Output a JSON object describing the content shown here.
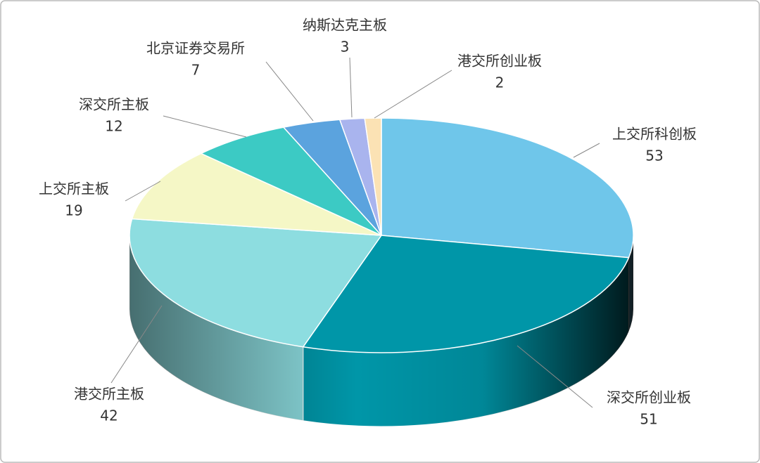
{
  "chart_data": {
    "type": "pie",
    "categories": [
      "上交所科创板",
      "深交所创业板",
      "港交所主板",
      "上交所主板",
      "深交所主板",
      "北京证券交易所",
      "纳斯达克主板",
      "港交所创业板"
    ],
    "values": [
      53,
      51,
      42,
      19,
      12,
      7,
      3,
      2
    ],
    "colors": [
      "#6fc6ea",
      "#0096a8",
      "#8ddde0",
      "#f5f7c6",
      "#3ccac4",
      "#5ba3de",
      "#a9b4ee",
      "#fbe2b4"
    ]
  }
}
